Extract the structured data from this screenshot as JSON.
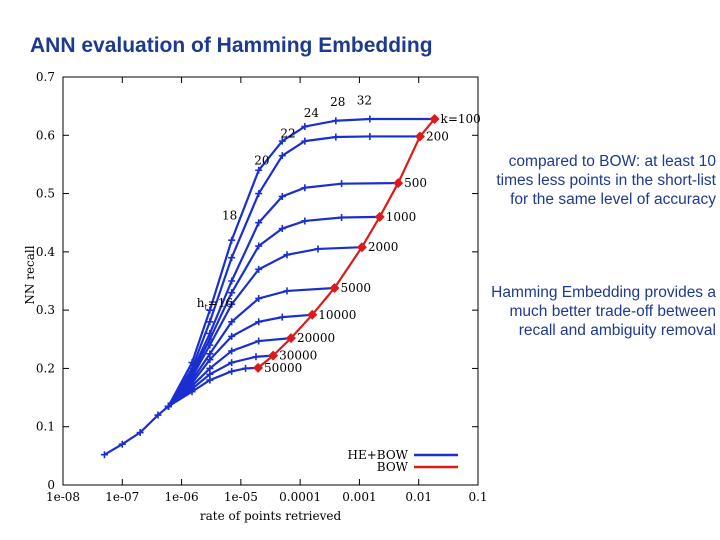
{
  "title": "ANN evaluation of Hamming Embedding",
  "notes": {
    "bow_comparison": "compared to BOW: at least 10 times less points in the short-list for the same level of accuracy",
    "tradeoff": "Hamming Embedding provides a much better trade-off between recall and ambiguity removal"
  },
  "colors": {
    "he_bow": "#1a2fd0",
    "bow": "#dd1a1a",
    "note_text": "#1d3a8f"
  },
  "chart_data": {
    "type": "line",
    "xlabel": "rate of points retrieved",
    "ylabel": "NN recall",
    "x_scale": "log",
    "xlim": [
      1e-08,
      0.1
    ],
    "ylim": [
      0,
      0.7
    ],
    "x_tick_labels": [
      "1e-08",
      "1e-07",
      "1e-06",
      "1e-05",
      "0.0001",
      "0.001",
      "0.01",
      "0.1"
    ],
    "y_tick_labels": [
      "0",
      "0.1",
      "0.2",
      "0.3",
      "0.4",
      "0.5",
      "0.6",
      "0.7"
    ],
    "legend": {
      "position": "bottom-right",
      "entries": [
        "HE+BOW",
        "BOW"
      ]
    },
    "series": [
      {
        "name": "BOW",
        "color": "#dd1a1a",
        "points": [
          {
            "x": 0.0185,
            "y": 0.628,
            "label": "k=100"
          },
          {
            "x": 0.0105,
            "y": 0.598,
            "label": "200"
          },
          {
            "x": 0.0045,
            "y": 0.518,
            "label": "500"
          },
          {
            "x": 0.0022,
            "y": 0.46,
            "label": "1000"
          },
          {
            "x": 0.0011,
            "y": 0.408,
            "label": "2000"
          },
          {
            "x": 0.00038,
            "y": 0.338,
            "label": "5000"
          },
          {
            "x": 0.00016,
            "y": 0.292,
            "label": "10000"
          },
          {
            "x": 7e-05,
            "y": 0.252,
            "label": "20000"
          },
          {
            "x": 3.5e-05,
            "y": 0.222,
            "label": "30000"
          },
          {
            "x": 1.95e-05,
            "y": 0.201,
            "label": "50000"
          }
        ]
      },
      {
        "name": "HE+BOW",
        "color": "#1a2fd0",
        "threshold_labels": [
          {
            "text": "h_t=16",
            "x": 1.8e-06,
            "y": 0.312
          },
          {
            "text": "18",
            "x": 4.8e-06,
            "y": 0.462
          },
          {
            "text": "20",
            "x": 1.68e-05,
            "y": 0.557
          },
          {
            "text": "22",
            "x": 4.65e-05,
            "y": 0.603
          },
          {
            "text": "24",
            "x": 0.000115,
            "y": 0.638
          },
          {
            "text": "28",
            "x": 0.00032,
            "y": 0.657
          },
          {
            "text": "32",
            "x": 0.0009,
            "y": 0.66
          }
        ],
        "common_curve": [
          {
            "x": 5e-08,
            "y": 0.052
          },
          {
            "x": 1e-07,
            "y": 0.07
          },
          {
            "x": 2e-07,
            "y": 0.09
          },
          {
            "x": 4e-07,
            "y": 0.12
          },
          {
            "x": 6e-07,
            "y": 0.135
          }
        ],
        "curves": [
          {
            "k": "100",
            "points": [
              {
                "x": 6e-07,
                "y": 0.135
              },
              {
                "x": 1.5e-06,
                "y": 0.21
              },
              {
                "x": 3e-06,
                "y": 0.3
              },
              {
                "x": 7e-06,
                "y": 0.42
              },
              {
                "x": 2e-05,
                "y": 0.54
              },
              {
                "x": 5e-05,
                "y": 0.59
              },
              {
                "x": 0.00012,
                "y": 0.615
              },
              {
                "x": 0.0004,
                "y": 0.625
              },
              {
                "x": 0.0015,
                "y": 0.628
              },
              {
                "x": 0.0185,
                "y": 0.628
              }
            ]
          },
          {
            "k": "200",
            "points": [
              {
                "x": 6e-07,
                "y": 0.135
              },
              {
                "x": 1.5e-06,
                "y": 0.2
              },
              {
                "x": 3e-06,
                "y": 0.28
              },
              {
                "x": 7e-06,
                "y": 0.39
              },
              {
                "x": 2e-05,
                "y": 0.5
              },
              {
                "x": 5e-05,
                "y": 0.565
              },
              {
                "x": 0.00012,
                "y": 0.59
              },
              {
                "x": 0.0004,
                "y": 0.597
              },
              {
                "x": 0.0015,
                "y": 0.598
              },
              {
                "x": 0.0105,
                "y": 0.598
              }
            ]
          },
          {
            "k": "500",
            "points": [
              {
                "x": 6e-07,
                "y": 0.135
              },
              {
                "x": 1.5e-06,
                "y": 0.195
              },
              {
                "x": 3e-06,
                "y": 0.26
              },
              {
                "x": 7e-06,
                "y": 0.35
              },
              {
                "x": 2e-05,
                "y": 0.45
              },
              {
                "x": 5e-05,
                "y": 0.495
              },
              {
                "x": 0.00012,
                "y": 0.51
              },
              {
                "x": 0.0005,
                "y": 0.517
              },
              {
                "x": 0.0045,
                "y": 0.518
              }
            ]
          },
          {
            "k": "1000",
            "points": [
              {
                "x": 6e-07,
                "y": 0.135
              },
              {
                "x": 1.5e-06,
                "y": 0.19
              },
              {
                "x": 3e-06,
                "y": 0.25
              },
              {
                "x": 7e-06,
                "y": 0.33
              },
              {
                "x": 2e-05,
                "y": 0.41
              },
              {
                "x": 5e-05,
                "y": 0.44
              },
              {
                "x": 0.00012,
                "y": 0.453
              },
              {
                "x": 0.0005,
                "y": 0.459
              },
              {
                "x": 0.0022,
                "y": 0.46
              }
            ]
          },
          {
            "k": "2000",
            "points": [
              {
                "x": 6e-07,
                "y": 0.135
              },
              {
                "x": 1.5e-06,
                "y": 0.185
              },
              {
                "x": 3e-06,
                "y": 0.24
              },
              {
                "x": 7e-06,
                "y": 0.31
              },
              {
                "x": 2e-05,
                "y": 0.37
              },
              {
                "x": 6e-05,
                "y": 0.395
              },
              {
                "x": 0.0002,
                "y": 0.405
              },
              {
                "x": 0.0011,
                "y": 0.408
              }
            ]
          },
          {
            "k": "5000",
            "points": [
              {
                "x": 6e-07,
                "y": 0.135
              },
              {
                "x": 1.5e-06,
                "y": 0.18
              },
              {
                "x": 3e-06,
                "y": 0.225
              },
              {
                "x": 7e-06,
                "y": 0.28
              },
              {
                "x": 2e-05,
                "y": 0.32
              },
              {
                "x": 6e-05,
                "y": 0.333
              },
              {
                "x": 0.00038,
                "y": 0.338
              }
            ]
          },
          {
            "k": "10000",
            "points": [
              {
                "x": 6e-07,
                "y": 0.135
              },
              {
                "x": 1.5e-06,
                "y": 0.175
              },
              {
                "x": 3e-06,
                "y": 0.215
              },
              {
                "x": 7e-06,
                "y": 0.255
              },
              {
                "x": 2e-05,
                "y": 0.28
              },
              {
                "x": 5e-05,
                "y": 0.288
              },
              {
                "x": 0.00016,
                "y": 0.292
              }
            ]
          },
          {
            "k": "20000",
            "points": [
              {
                "x": 6e-07,
                "y": 0.135
              },
              {
                "x": 1.5e-06,
                "y": 0.17
              },
              {
                "x": 3e-06,
                "y": 0.2
              },
              {
                "x": 7e-06,
                "y": 0.23
              },
              {
                "x": 2e-05,
                "y": 0.247
              },
              {
                "x": 7e-05,
                "y": 0.252
              }
            ]
          },
          {
            "k": "30000",
            "points": [
              {
                "x": 6e-07,
                "y": 0.135
              },
              {
                "x": 1.5e-06,
                "y": 0.165
              },
              {
                "x": 3e-06,
                "y": 0.19
              },
              {
                "x": 7e-06,
                "y": 0.21
              },
              {
                "x": 1.8e-05,
                "y": 0.22
              },
              {
                "x": 3.5e-05,
                "y": 0.222
              }
            ]
          },
          {
            "k": "50000",
            "points": [
              {
                "x": 6e-07,
                "y": 0.135
              },
              {
                "x": 1.5e-06,
                "y": 0.16
              },
              {
                "x": 3e-06,
                "y": 0.18
              },
              {
                "x": 7e-06,
                "y": 0.195
              },
              {
                "x": 1.2e-05,
                "y": 0.2
              },
              {
                "x": 1.95e-05,
                "y": 0.201
              }
            ]
          }
        ]
      }
    ]
  }
}
